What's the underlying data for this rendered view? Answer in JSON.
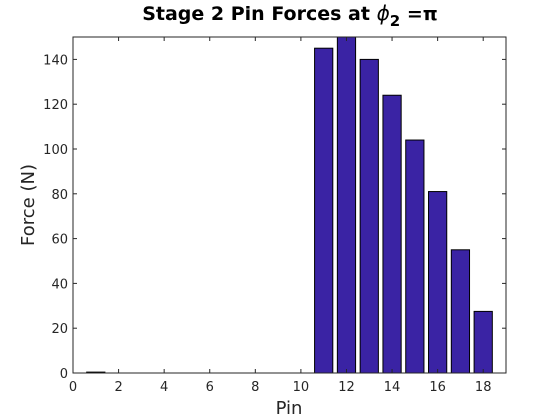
{
  "chart_data": {
    "type": "bar",
    "title": "Stage 2 Pin Forces at",
    "title_symbol": "ϕ",
    "title_subscript": "2",
    "title_suffix": " =π",
    "xlabel": "Pin",
    "ylabel": "Force (N)",
    "xlim": [
      0,
      19
    ],
    "ylim": [
      0,
      150
    ],
    "xticks": [
      0,
      2,
      4,
      6,
      8,
      10,
      12,
      14,
      16,
      18
    ],
    "yticks": [
      0,
      20,
      40,
      60,
      80,
      100,
      120,
      140
    ],
    "bar_color": "#3a23a4",
    "categories": [
      1,
      2,
      3,
      4,
      5,
      6,
      7,
      8,
      9,
      10,
      11,
      12,
      13,
      14,
      15,
      16,
      17,
      18
    ],
    "values": [
      0.4,
      0,
      0,
      0,
      0,
      0,
      0,
      0,
      0,
      0,
      145,
      150,
      140,
      124,
      104,
      81,
      55,
      27.5
    ],
    "grid": false
  }
}
